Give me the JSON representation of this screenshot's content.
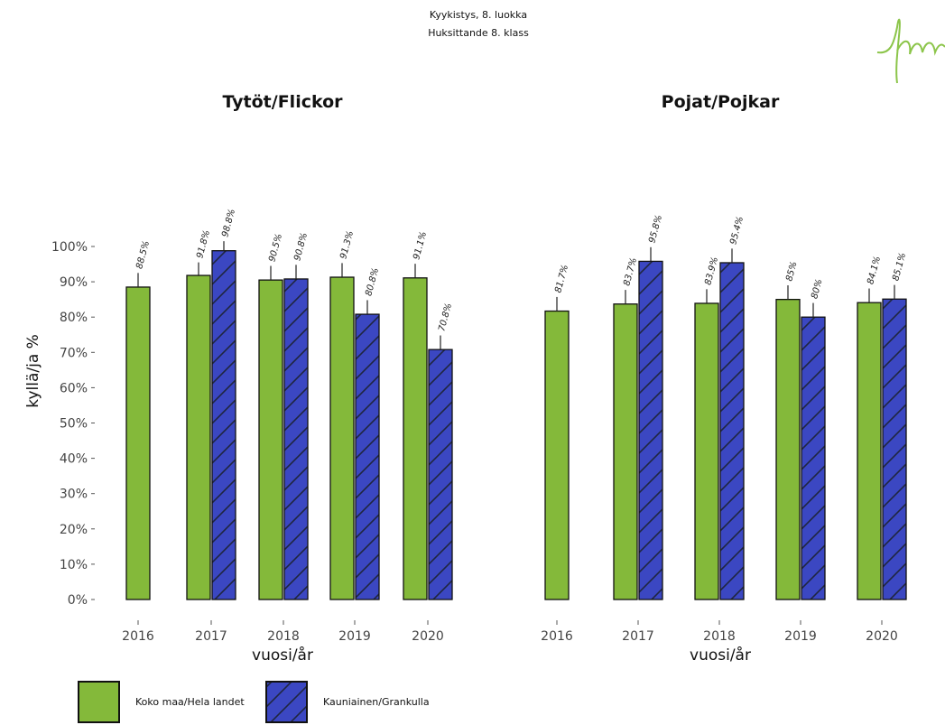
{
  "title_lines": [
    "Kyykistys, 8. luokka",
    "Huksittande 8. klass"
  ],
  "logo_icon": "signature-logo-icon",
  "colors": {
    "koko_maa": "#84b93a",
    "kauniainen": "#3b47c2",
    "hatch": "#1f2640",
    "errorbar": "#222222",
    "logo": "#8cc54a"
  },
  "chart_data": {
    "type": "bar",
    "ylabel": "kyllä/ja %",
    "xlabel": "vuosi/år",
    "ylim": [
      0,
      100
    ],
    "yticks": [
      "0%",
      "10%",
      "20%",
      "30%",
      "40%",
      "50%",
      "60%",
      "70%",
      "80%",
      "90%",
      "100%"
    ],
    "categories": [
      "2016",
      "2017",
      "2018",
      "2019",
      "2020"
    ],
    "legend": [
      "Koko maa/Hela landet",
      "Kauniainen/Grankulla"
    ],
    "legend_position": "bottom-left",
    "panels": [
      {
        "title": "Tytöt/Flickor",
        "series": [
          {
            "name": "Koko maa/Hela landet",
            "values": [
              88.5,
              91.8,
              90.5,
              91.3,
              91.1
            ],
            "labels": [
              "88.5%",
              "91.8%",
              "90.5%",
              "91.3%",
              "91.1%"
            ],
            "error_upper": [
              92.5,
              95.5,
              94.5,
              95.3,
              95.1
            ]
          },
          {
            "name": "Kauniainen/Grankulla",
            "values": [
              null,
              98.8,
              90.8,
              80.8,
              70.8
            ],
            "labels": [
              "",
              "98.8%",
              "90.8%",
              "80.8%",
              "70.8%"
            ],
            "error_upper": [
              null,
              101.5,
              94.8,
              84.8,
              74.8
            ]
          }
        ]
      },
      {
        "title": "Pojat/Pojkar",
        "series": [
          {
            "name": "Koko maa/Hela landet",
            "values": [
              81.7,
              83.7,
              83.9,
              85,
              84.1
            ],
            "labels": [
              "81.7%",
              "83.7%",
              "83.9%",
              "85%",
              "84.1%"
            ],
            "error_upper": [
              85.7,
              87.7,
              87.9,
              89,
              88.1
            ]
          },
          {
            "name": "Kauniainen/Grankulla",
            "values": [
              null,
              95.8,
              95.4,
              80,
              85.1
            ],
            "labels": [
              "",
              "95.8%",
              "95.4%",
              "80%",
              "85.1%"
            ],
            "error_upper": [
              null,
              99.8,
              99.4,
              84,
              89.1
            ]
          }
        ]
      }
    ]
  }
}
